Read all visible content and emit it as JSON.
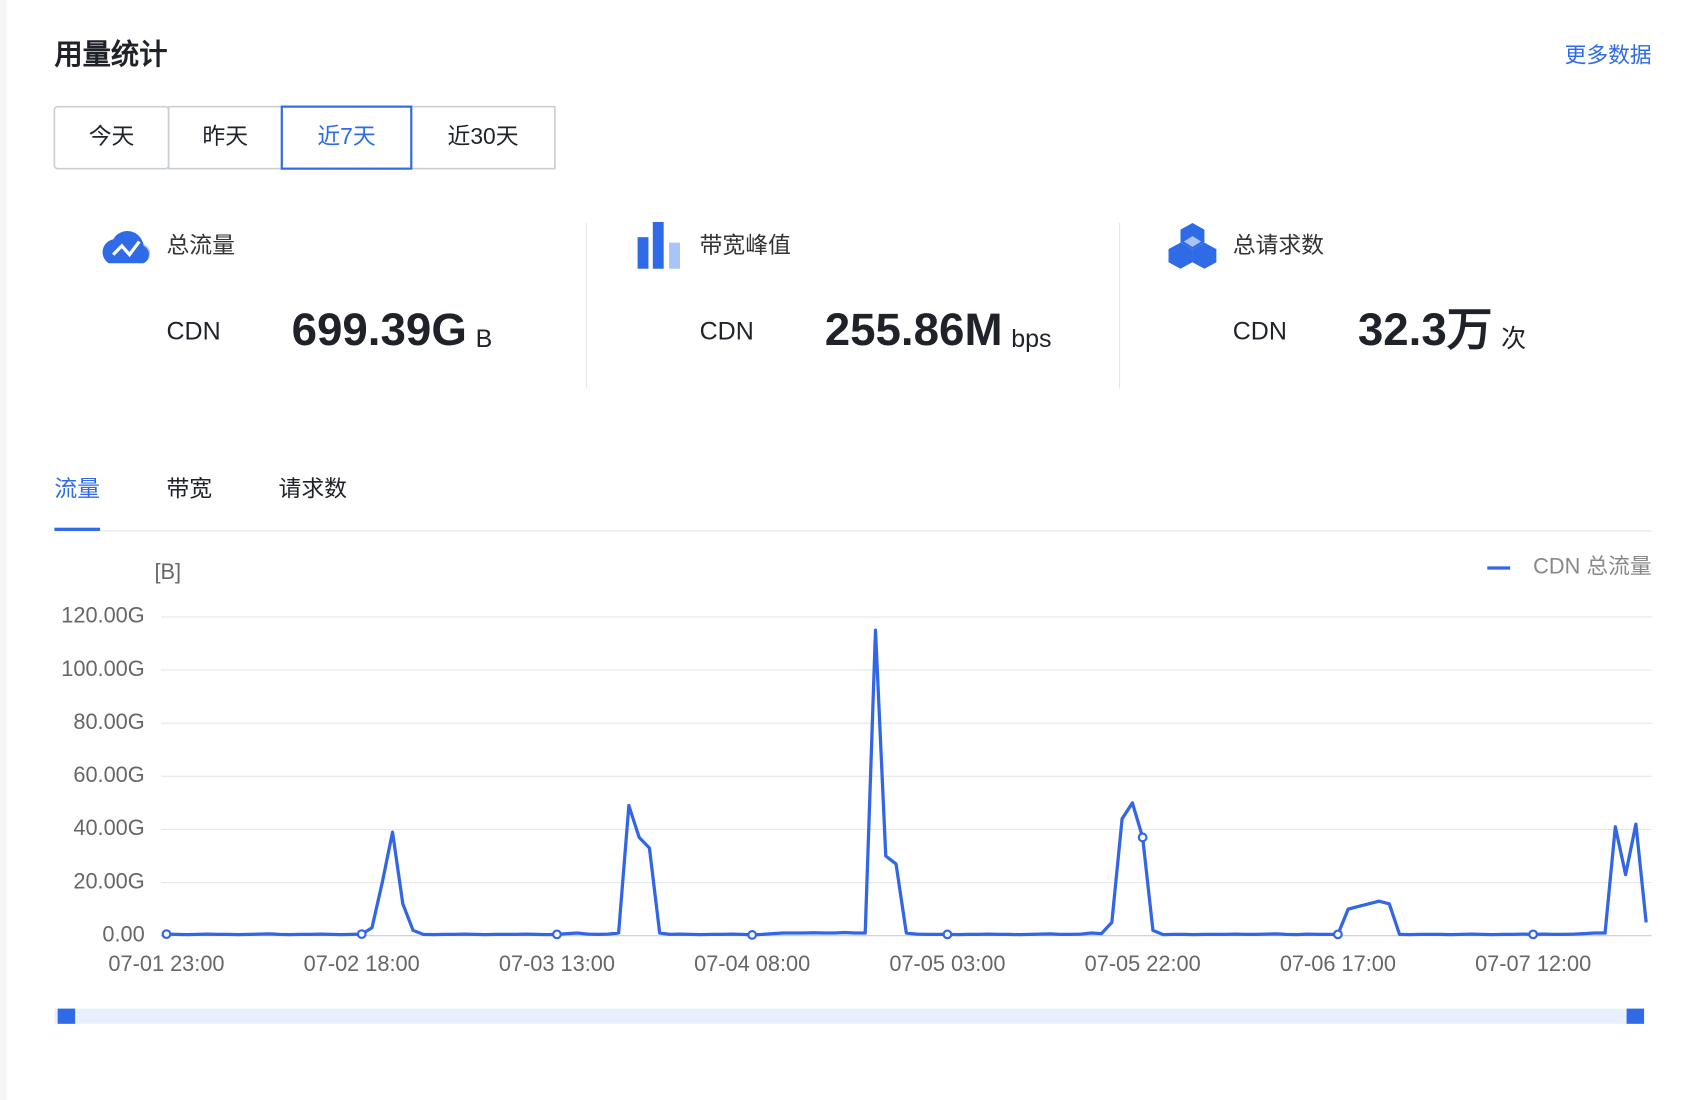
{
  "header": {
    "title": "用量统计",
    "more_link": "更多数据"
  },
  "period_tabs": {
    "items": [
      "今天",
      "昨天",
      "近7天",
      "近30天"
    ],
    "active": 2
  },
  "stats": [
    {
      "label": "总流量",
      "source": "CDN",
      "value": "699.39G",
      "unit": "B"
    },
    {
      "label": "带宽峰值",
      "source": "CDN",
      "value": "255.86M",
      "unit": "bps"
    },
    {
      "label": "总请求数",
      "source": "CDN",
      "value": "32.3万",
      "unit": "次"
    }
  ],
  "chart_tabs": {
    "items": [
      "流量",
      "带宽",
      "请求数"
    ],
    "active": 0
  },
  "chart_data": {
    "type": "line",
    "y_label": "[B]",
    "legend": "top-right",
    "grid": true,
    "categories": [
      "07-01 23:00",
      null,
      null,
      null,
      null,
      null,
      null,
      null,
      null,
      null,
      null,
      null,
      null,
      null,
      null,
      null,
      null,
      null,
      null,
      "07-02 18:00",
      null,
      null,
      null,
      null,
      null,
      null,
      null,
      null,
      null,
      null,
      null,
      null,
      null,
      null,
      null,
      null,
      null,
      null,
      "07-03 13:00",
      null,
      null,
      null,
      null,
      null,
      null,
      null,
      null,
      null,
      null,
      null,
      null,
      null,
      null,
      null,
      null,
      null,
      null,
      "07-04 08:00",
      null,
      null,
      null,
      null,
      null,
      null,
      null,
      null,
      null,
      null,
      null,
      null,
      null,
      null,
      null,
      null,
      null,
      null,
      "07-05 03:00",
      null,
      null,
      null,
      null,
      null,
      null,
      null,
      null,
      null,
      null,
      null,
      null,
      null,
      null,
      null,
      null,
      null,
      null,
      "07-05 22:00",
      null,
      null,
      null,
      null,
      null,
      null,
      null,
      null,
      null,
      null,
      null,
      null,
      null,
      null,
      null,
      null,
      null,
      null,
      "07-06 17:00",
      null,
      null,
      null,
      null,
      null,
      null,
      null,
      null,
      null,
      null,
      null,
      null,
      null,
      null,
      null,
      null,
      null,
      null,
      "07-07 12:00",
      null,
      null,
      null,
      null,
      null,
      null,
      null,
      null,
      null,
      null,
      null
    ],
    "series": [
      {
        "name": "CDN 总流量",
        "color": "#3366e6",
        "values": [
          0.6,
          0.5,
          0.4,
          0.5,
          0.6,
          0.5,
          0.5,
          0.4,
          0.5,
          0.6,
          0.7,
          0.5,
          0.4,
          0.5,
          0.5,
          0.6,
          0.5,
          0.4,
          0.5,
          0.6,
          3,
          20,
          39,
          12,
          2,
          0.5,
          0.4,
          0.5,
          0.5,
          0.6,
          0.5,
          0.4,
          0.5,
          0.5,
          0.5,
          0.6,
          0.5,
          0.4,
          0.5,
          0.8,
          1,
          0.6,
          0.5,
          0.6,
          1,
          49,
          37,
          33,
          1,
          0.5,
          0.6,
          0.5,
          0.4,
          0.5,
          0.5,
          0.6,
          0.5,
          0.3,
          0.5,
          0.8,
          1,
          1,
          1,
          1.1,
          1,
          1,
          1.2,
          1,
          1,
          115,
          30,
          27,
          1,
          0.6,
          0.5,
          0.5,
          0.5,
          0.4,
          0.5,
          0.5,
          0.6,
          0.5,
          0.5,
          0.4,
          0.5,
          0.6,
          0.7,
          0.5,
          0.5,
          0.6,
          1,
          0.8,
          5,
          44,
          50,
          37,
          2,
          0.4,
          0.5,
          0.5,
          0.4,
          0.5,
          0.5,
          0.5,
          0.6,
          0.5,
          0.5,
          0.6,
          0.7,
          0.5,
          0.4,
          0.6,
          0.5,
          0.5,
          0.5,
          10,
          11,
          12,
          13,
          12,
          0.5,
          0.4,
          0.5,
          0.5,
          0.5,
          0.4,
          0.5,
          0.6,
          0.5,
          0.4,
          0.5,
          0.5,
          0.6,
          0.5,
          0.6,
          0.5,
          0.5,
          0.6,
          0.8,
          1,
          1,
          41,
          23,
          42,
          5
        ]
      }
    ],
    "ylim": [
      0,
      120
    ],
    "yticks": [
      {
        "value": 0,
        "label": "0.00"
      },
      {
        "value": 20,
        "label": "20.00G"
      },
      {
        "value": 40,
        "label": "40.00G"
      },
      {
        "value": 60,
        "label": "60.00G"
      },
      {
        "value": 80,
        "label": "80.00G"
      },
      {
        "value": 100,
        "label": "100.00G"
      },
      {
        "value": 120,
        "label": "120.00G"
      }
    ]
  }
}
